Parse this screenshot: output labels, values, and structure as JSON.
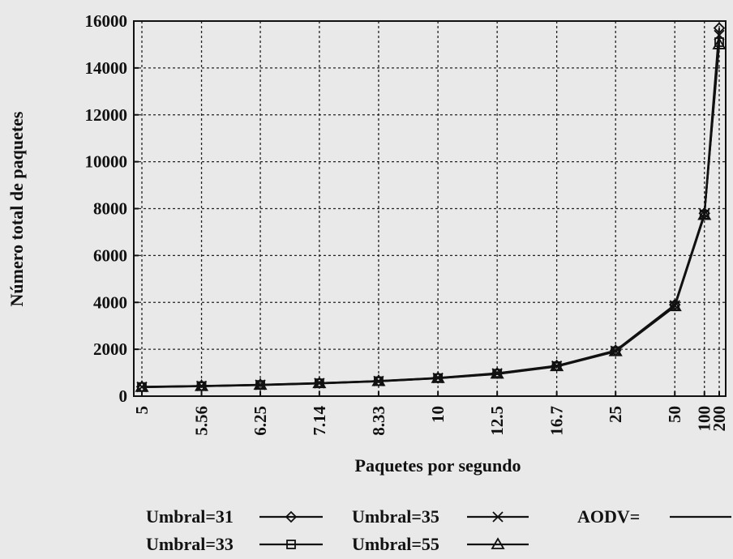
{
  "chart_data": {
    "type": "line",
    "title": "",
    "xlabel": "Paquetes por segundo",
    "ylabel": "Número total de paquetes",
    "x_categories": [
      "5",
      "5.56",
      "6.25",
      "7.14",
      "8.33",
      "10",
      "12.5",
      "16.7",
      "25",
      "50",
      "100",
      "200"
    ],
    "x_values": [
      5,
      5.56,
      6.25,
      7.14,
      8.33,
      10,
      12.5,
      16.7,
      25,
      50,
      100,
      200
    ],
    "x_scale": "reciprocal",
    "y_ticks": [
      0,
      2000,
      4000,
      6000,
      8000,
      10000,
      12000,
      14000,
      16000
    ],
    "ylim": [
      0,
      16000
    ],
    "grid": true,
    "legend_position": "bottom",
    "series": [
      {
        "name": "Umbral=31",
        "marker": "diamond",
        "values": [
          400,
          440,
          490,
          560,
          650,
          780,
          980,
          1300,
          1950,
          3900,
          7800,
          15700
        ]
      },
      {
        "name": "Umbral=33",
        "marker": "square",
        "values": [
          390,
          430,
          480,
          550,
          640,
          770,
          960,
          1280,
          1920,
          3850,
          7750,
          15100
        ]
      },
      {
        "name": "Umbral=35",
        "marker": "x",
        "values": [
          395,
          435,
          485,
          555,
          645,
          775,
          970,
          1290,
          1930,
          3870,
          7770,
          15400
        ]
      },
      {
        "name": "Umbral=55",
        "marker": "triangle",
        "values": [
          385,
          425,
          475,
          545,
          635,
          765,
          950,
          1270,
          1910,
          3830,
          7720,
          15000
        ]
      },
      {
        "name": "AODV=",
        "marker": "none",
        "values": [
          380,
          420,
          470,
          540,
          630,
          760,
          940,
          1260,
          1900,
          3820,
          7700,
          15200
        ]
      }
    ]
  }
}
